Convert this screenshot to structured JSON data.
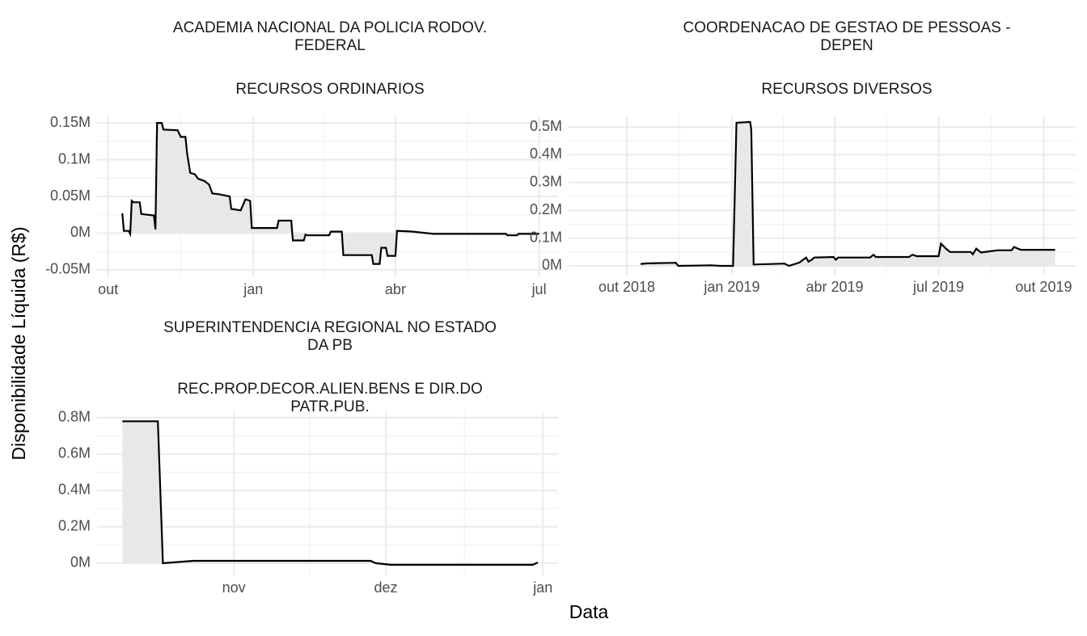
{
  "y_label": "Disponibilidade Líquida (R$)",
  "x_label": "Data",
  "chart_data": [
    {
      "type": "area",
      "title": [
        "ACADEMIA NACIONAL DA POLICIA RODOV.",
        "FEDERAL"
      ],
      "subtitle": [
        "RECURSOS ORDINARIOS"
      ],
      "color": "#000000",
      "fill": "#e8e8e8",
      "grid": true,
      "minor_grid": true,
      "x": [
        9,
        10,
        13,
        14,
        15,
        16,
        20,
        21,
        29,
        30,
        31,
        34,
        35,
        44,
        46,
        49,
        50,
        52,
        55,
        57,
        61,
        64,
        66,
        70,
        77,
        78,
        84,
        87,
        90,
        91,
        107,
        108,
        116,
        117,
        124,
        125,
        126,
        140,
        141,
        148,
        149,
        167,
        168,
        172,
        173,
        176,
        177,
        182,
        183,
        193,
        206,
        252,
        253,
        259,
        260,
        273
      ],
      "values": [
        27000,
        3000,
        3000,
        -1000,
        44000,
        42000,
        42000,
        26000,
        24000,
        5000,
        150000,
        150000,
        141000,
        140000,
        131000,
        131000,
        109000,
        82000,
        80000,
        74000,
        71000,
        66000,
        54000,
        53000,
        50000,
        33000,
        31000,
        46000,
        44000,
        7000,
        7000,
        17000,
        17000,
        -10000,
        -10000,
        -2000,
        -3000,
        -3000,
        2000,
        2000,
        -30000,
        -30000,
        -42000,
        -42000,
        -20000,
        -20000,
        -31000,
        -31000,
        3000,
        2000,
        -1000,
        -1000,
        -3000,
        -3000,
        -1000,
        -1000
      ],
      "xlim": [
        -7,
        285
      ],
      "xticks": [
        {
          "value": 0,
          "label": "out"
        },
        {
          "value": 92,
          "label": "jan"
        },
        {
          "value": 182,
          "label": "abr"
        },
        {
          "value": 273,
          "label": "jul"
        }
      ],
      "ylim": [
        -60000,
        160000
      ],
      "yticks": [
        {
          "value": -50000,
          "label": "-0.05M"
        },
        {
          "value": 0,
          "label": "0M"
        },
        {
          "value": 50000,
          "label": "0.05M"
        },
        {
          "value": 100000,
          "label": "0.1M"
        },
        {
          "value": 150000,
          "label": "0.15M"
        }
      ]
    },
    {
      "type": "area",
      "title": [
        "COORDENACAO DE GESTAO DE PESSOAS -",
        "DEPEN"
      ],
      "subtitle": [
        "RECURSOS DIVERSOS"
      ],
      "color": "#000000",
      "fill": "#e8e8e8",
      "grid": true,
      "minor_grid": true,
      "x": [
        12,
        18,
        43,
        45,
        74,
        82,
        93,
        96,
        108,
        109,
        111,
        138,
        142,
        151,
        157,
        159,
        162,
        164,
        181,
        183,
        185,
        213,
        216,
        218,
        247,
        250,
        254,
        273,
        275,
        280,
        283,
        301,
        303,
        306,
        310,
        317,
        325,
        337,
        339,
        345,
        375
      ],
      "values": [
        7000,
        9000,
        11000,
        0,
        2000,
        0,
        0,
        515000,
        518000,
        490000,
        5000,
        8000,
        0,
        12000,
        30000,
        15000,
        22000,
        30000,
        32000,
        22000,
        30000,
        30000,
        40000,
        32000,
        32000,
        40000,
        35000,
        35000,
        80000,
        60000,
        50000,
        50000,
        42000,
        62000,
        48000,
        52000,
        56000,
        56000,
        68000,
        58000,
        58000
      ],
      "xlim": [
        -51,
        393
      ],
      "xticks": [
        {
          "value": 0,
          "label": "out 2018"
        },
        {
          "value": 92,
          "label": "jan 2019"
        },
        {
          "value": 182,
          "label": "abr 2019"
        },
        {
          "value": 273,
          "label": "jul 2019"
        },
        {
          "value": 365,
          "label": "out 2019"
        }
      ],
      "ylim": [
        -32000,
        541000
      ],
      "yticks": [
        {
          "value": 0,
          "label": "0M"
        },
        {
          "value": 100000,
          "label": "0.1M"
        },
        {
          "value": 200000,
          "label": "0.2M"
        },
        {
          "value": 300000,
          "label": "0.3M"
        },
        {
          "value": 400000,
          "label": "0.4M"
        },
        {
          "value": 500000,
          "label": "0.5M"
        }
      ]
    },
    {
      "type": "area",
      "title": [
        "SUPERINTENDENCIA REGIONAL NO ESTADO",
        "DA PB"
      ],
      "subtitle": [
        "REC.PROP.DECOR.ALIEN.BENS E DIR.DO",
        "PATR.PUB."
      ],
      "color": "#000000",
      "fill": "#e8e8e8",
      "grid": true,
      "minor_grid": true,
      "x": [
        -22,
        -15,
        -14,
        -8,
        27,
        28,
        31,
        59,
        60
      ],
      "values": [
        780000,
        780000,
        0,
        13000,
        13000,
        0,
        -9000,
        -9000,
        4000
      ],
      "xlim": [
        -27,
        64
      ],
      "xticks": [
        {
          "value": 0,
          "label": "nov"
        },
        {
          "value": 30,
          "label": "dez"
        },
        {
          "value": 61,
          "label": "jan"
        }
      ],
      "ylim": [
        -67000,
        830000
      ],
      "yticks": [
        {
          "value": 0,
          "label": "0M"
        },
        {
          "value": 200000,
          "label": "0.2M"
        },
        {
          "value": 400000,
          "label": "0.4M"
        },
        {
          "value": 600000,
          "label": "0.6M"
        },
        {
          "value": 800000,
          "label": "0.8M"
        }
      ]
    }
  ]
}
